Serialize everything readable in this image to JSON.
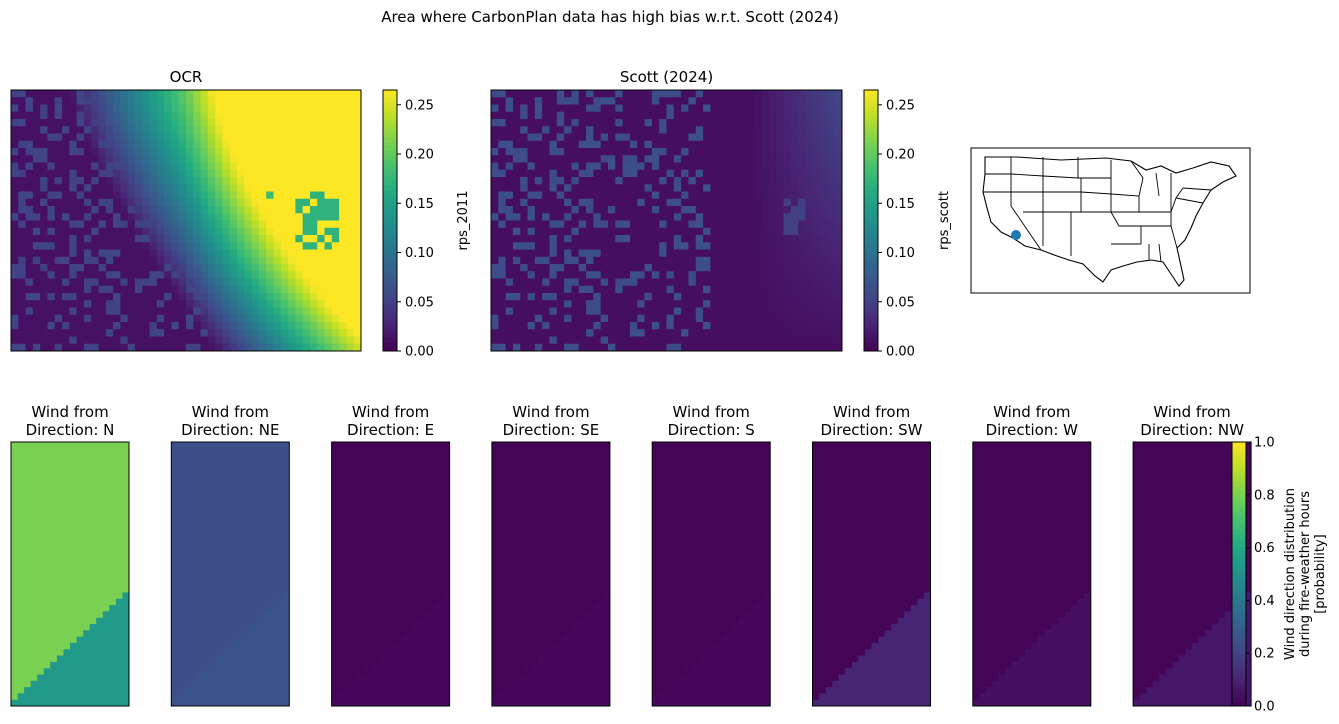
{
  "suptitle": "Area where CarbonPlan data has high bias w.r.t. Scott (2024)",
  "chart_data": [
    {
      "type": "heatmap",
      "title": "OCR",
      "colorbar": {
        "label": "rps_2011",
        "range": [
          0,
          0.265
        ],
        "ticks": [
          "0.00",
          "0.05",
          "0.10",
          "0.15",
          "0.20",
          "0.25"
        ]
      },
      "colormap": "viridis",
      "field_summary": {
        "grid": [
          48,
          36
        ],
        "max_value": 0.265,
        "max_location": "top-right",
        "base_level": 0.02,
        "gradient": "increases toward the east; band of ~0.08-0.12 across the middle; hot spot ~0.17 near (col 42, row 16)"
      }
    },
    {
      "type": "heatmap",
      "title": "Scott (2024)",
      "colorbar": {
        "label": "rps_scott",
        "range": [
          0,
          0.265
        ],
        "ticks": [
          "0.00",
          "0.05",
          "0.10",
          "0.15",
          "0.20",
          "0.25"
        ]
      },
      "colormap": "viridis",
      "field_summary": {
        "grid": [
          48,
          36
        ],
        "max_value": 0.07,
        "max_location": "top-right corner",
        "base_level": 0.01,
        "gradient": "nearly uniform low values with scattered patches ~0.04-0.07"
      }
    },
    {
      "type": "map",
      "region": "contiguous United States (state boundaries)",
      "marker": {
        "label": "site",
        "location": "southern California / Arizona border",
        "color": "#1f77b4"
      }
    },
    {
      "type": "heatmap",
      "title_prefix": "Wind from",
      "title_label": "Direction:",
      "directions": [
        "N",
        "NE",
        "E",
        "SE",
        "S",
        "SW",
        "W",
        "NW"
      ],
      "colormap": "viridis",
      "colorbar": {
        "label_lines": [
          "Wind direction distribution",
          "during fire-weather hours",
          "[probability]"
        ],
        "range": [
          0,
          1
        ],
        "ticks": [
          "0.0",
          "0.2",
          "0.4",
          "0.6",
          "0.8",
          "1.0"
        ]
      },
      "panels": [
        {
          "direction": "N",
          "value_upper": 0.8,
          "value_lower": 0.54
        },
        {
          "direction": "NE",
          "value_upper": 0.24,
          "value_lower": 0.26
        },
        {
          "direction": "E",
          "value_upper": 0.01,
          "value_lower": 0.02
        },
        {
          "direction": "SE",
          "value_upper": 0.01,
          "value_lower": 0.02
        },
        {
          "direction": "S",
          "value_upper": 0.01,
          "value_lower": 0.02
        },
        {
          "direction": "SW",
          "value_upper": 0.01,
          "value_lower": 0.1
        },
        {
          "direction": "W",
          "value_upper": 0.01,
          "value_lower": 0.04
        },
        {
          "direction": "NW",
          "value_upper": 0.01,
          "value_lower": 0.06
        }
      ]
    }
  ]
}
